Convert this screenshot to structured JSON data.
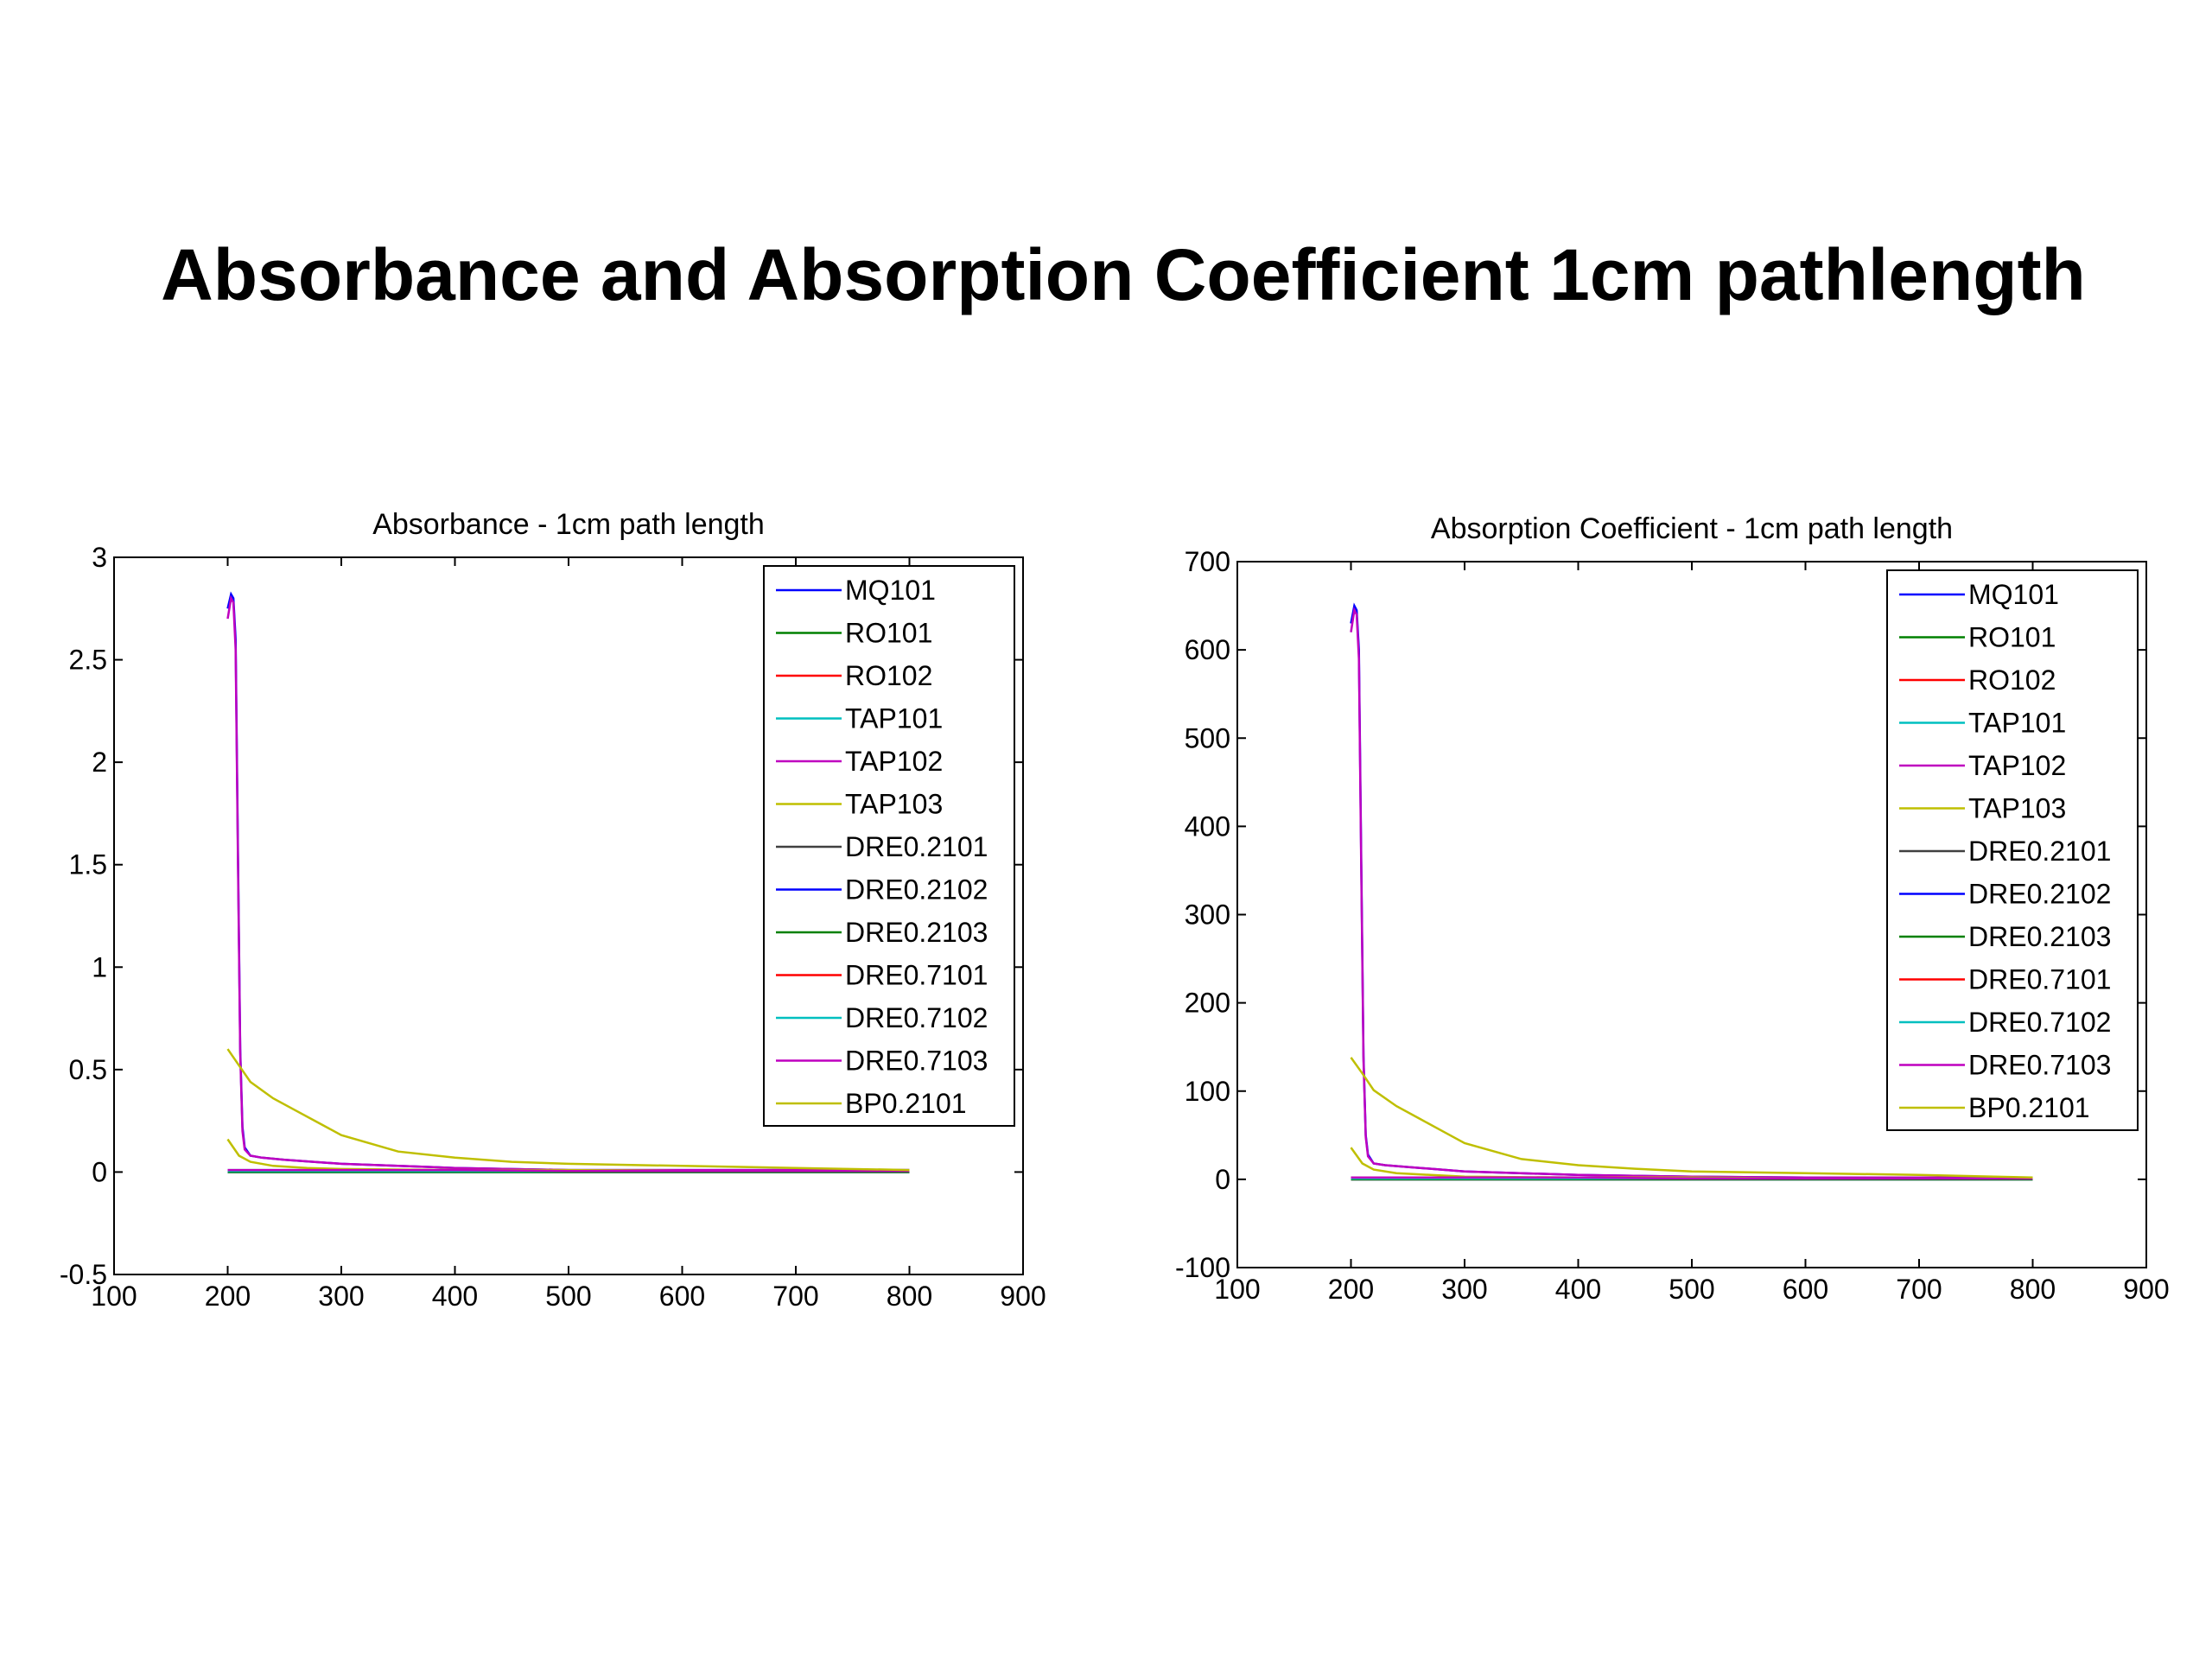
{
  "page": {
    "title": "Absorbance and Absorption Coefficient 1cm pathlength"
  },
  "legend_colors": {
    "MQ101": "#0000ff",
    "RO101": "#008000",
    "RO102": "#ff0000",
    "TAP101": "#00bfbf",
    "TAP102": "#bf00bf",
    "TAP103": "#bfbf00",
    "DRE0.2101": "#404040",
    "DRE0.2102": "#0000ff",
    "DRE0.2103": "#008000",
    "DRE0.7101": "#ff0000",
    "DRE0.7102": "#00bfbf",
    "DRE0.7103": "#bf00bf",
    "BP0.2101": "#bfbf00"
  },
  "chart_data": [
    {
      "type": "line",
      "title": "Absorbance - 1cm path length",
      "xlabel": "",
      "ylabel": "",
      "xlim": [
        100,
        900
      ],
      "ylim": [
        -0.5,
        3
      ],
      "xticks": [
        "100",
        "200",
        "300",
        "400",
        "500",
        "600",
        "700",
        "800",
        "900"
      ],
      "yticks": [
        "-0.5",
        "0",
        "0.5",
        "1",
        "1.5",
        "2",
        "2.5",
        "3"
      ],
      "legend_position": "top-right",
      "grid": false,
      "series": [
        {
          "name": "MQ101",
          "color": "#0000ff",
          "x": [
            200,
            203,
            205,
            207,
            209,
            211,
            213,
            215,
            220,
            230,
            250,
            300,
            400,
            500,
            600,
            700,
            800
          ],
          "y": [
            2.75,
            2.82,
            2.8,
            2.6,
            1.6,
            0.6,
            0.22,
            0.12,
            0.08,
            0.07,
            0.06,
            0.04,
            0.02,
            0.01,
            0.01,
            0.01,
            0.01
          ]
        },
        {
          "name": "RO101",
          "color": "#008000",
          "x": [
            200,
            300,
            400,
            500,
            600,
            700,
            800
          ],
          "y": [
            0.0,
            0.0,
            0.0,
            0.0,
            0.0,
            0.0,
            0.0
          ]
        },
        {
          "name": "RO102",
          "color": "#ff0000",
          "x": [
            200,
            300,
            400,
            500,
            600,
            700,
            800
          ],
          "y": [
            0.005,
            0.005,
            0.005,
            0.005,
            0.005,
            0.005,
            0.005
          ]
        },
        {
          "name": "TAP101",
          "color": "#00bfbf",
          "x": [
            200,
            300,
            400,
            500,
            600,
            700,
            800
          ],
          "y": [
            0.01,
            0.01,
            0.01,
            0.005,
            0.005,
            0.005,
            0.005
          ]
        },
        {
          "name": "TAP102",
          "color": "#bf00bf",
          "x": [
            200,
            203,
            205,
            207,
            209,
            211,
            213,
            215,
            220,
            230,
            250,
            300,
            400,
            500,
            600,
            700,
            800
          ],
          "y": [
            2.7,
            2.8,
            2.78,
            2.55,
            1.55,
            0.58,
            0.2,
            0.11,
            0.08,
            0.07,
            0.06,
            0.04,
            0.02,
            0.01,
            0.01,
            0.01,
            0.01
          ]
        },
        {
          "name": "TAP103",
          "color": "#bfbf00",
          "x": [
            200,
            210,
            220,
            240,
            270,
            300,
            400,
            500,
            600,
            700,
            800
          ],
          "y": [
            0.16,
            0.08,
            0.05,
            0.03,
            0.02,
            0.015,
            0.01,
            0.01,
            0.005,
            0.005,
            0.005
          ]
        },
        {
          "name": "DRE0.2101",
          "color": "#404040",
          "x": [
            200,
            300,
            400,
            500,
            600,
            700,
            800
          ],
          "y": [
            0.0,
            0.0,
            0.0,
            0.0,
            0.0,
            0.0,
            0.0
          ]
        },
        {
          "name": "DRE0.2102",
          "color": "#0000ff",
          "x": [
            200,
            300,
            400,
            500,
            600,
            700,
            800
          ],
          "y": [
            0.0,
            0.0,
            0.0,
            0.0,
            0.0,
            0.0,
            0.0
          ]
        },
        {
          "name": "DRE0.2103",
          "color": "#008000",
          "x": [
            200,
            300,
            400,
            500,
            600,
            700,
            800
          ],
          "y": [
            0.0,
            0.0,
            0.0,
            0.0,
            0.0,
            0.0,
            0.0
          ]
        },
        {
          "name": "DRE0.7101",
          "color": "#ff0000",
          "x": [
            200,
            300,
            400,
            500,
            600,
            700,
            800
          ],
          "y": [
            0.005,
            0.005,
            0.005,
            0.005,
            0.005,
            0.005,
            0.005
          ]
        },
        {
          "name": "DRE0.7102",
          "color": "#00bfbf",
          "x": [
            200,
            300,
            400,
            500,
            600,
            700,
            800
          ],
          "y": [
            0.005,
            0.005,
            0.005,
            0.005,
            0.005,
            0.005,
            0.005
          ]
        },
        {
          "name": "DRE0.7103",
          "color": "#bf00bf",
          "x": [
            200,
            300,
            400,
            500,
            600,
            700,
            800
          ],
          "y": [
            0.01,
            0.01,
            0.01,
            0.005,
            0.005,
            0.005,
            0.005
          ]
        },
        {
          "name": "BP0.2101",
          "color": "#bfbf00",
          "x": [
            200,
            210,
            220,
            240,
            260,
            280,
            300,
            350,
            400,
            450,
            500,
            600,
            700,
            800
          ],
          "y": [
            0.6,
            0.52,
            0.44,
            0.36,
            0.3,
            0.24,
            0.18,
            0.1,
            0.07,
            0.05,
            0.04,
            0.03,
            0.02,
            0.01
          ]
        }
      ]
    },
    {
      "type": "line",
      "title": "Absorption Coefficient - 1cm path length",
      "xlabel": "",
      "ylabel": "",
      "xlim": [
        100,
        900
      ],
      "ylim": [
        -100,
        700
      ],
      "xticks": [
        "100",
        "200",
        "300",
        "400",
        "500",
        "600",
        "700",
        "800",
        "900"
      ],
      "yticks": [
        "-100",
        "0",
        "100",
        "200",
        "300",
        "400",
        "500",
        "600",
        "700"
      ],
      "legend_position": "top-right",
      "grid": false,
      "series": [
        {
          "name": "MQ101",
          "color": "#0000ff",
          "x": [
            200,
            203,
            205,
            207,
            209,
            211,
            213,
            215,
            220,
            230,
            250,
            300,
            400,
            500,
            600,
            700,
            800
          ],
          "y": [
            630,
            650,
            645,
            600,
            370,
            140,
            50,
            28,
            18,
            16,
            14,
            9,
            5,
            3,
            2,
            2,
            2
          ]
        },
        {
          "name": "RO101",
          "color": "#008000",
          "x": [
            200,
            300,
            400,
            500,
            600,
            700,
            800
          ],
          "y": [
            0,
            0,
            0,
            0,
            0,
            0,
            0
          ]
        },
        {
          "name": "RO102",
          "color": "#ff0000",
          "x": [
            200,
            300,
            400,
            500,
            600,
            700,
            800
          ],
          "y": [
            1,
            1,
            1,
            1,
            1,
            1,
            1
          ]
        },
        {
          "name": "TAP101",
          "color": "#00bfbf",
          "x": [
            200,
            300,
            400,
            500,
            600,
            700,
            800
          ],
          "y": [
            2,
            2,
            2,
            1,
            1,
            1,
            1
          ]
        },
        {
          "name": "TAP102",
          "color": "#bf00bf",
          "x": [
            200,
            203,
            205,
            207,
            209,
            211,
            213,
            215,
            220,
            230,
            250,
            300,
            400,
            500,
            600,
            700,
            800
          ],
          "y": [
            620,
            645,
            640,
            590,
            360,
            135,
            48,
            26,
            18,
            16,
            14,
            9,
            5,
            3,
            2,
            2,
            2
          ]
        },
        {
          "name": "TAP103",
          "color": "#bfbf00",
          "x": [
            200,
            210,
            220,
            240,
            270,
            300,
            400,
            500,
            600,
            700,
            800
          ],
          "y": [
            36,
            18,
            11,
            7,
            5,
            3,
            2,
            2,
            1,
            1,
            1
          ]
        },
        {
          "name": "DRE0.2101",
          "color": "#404040",
          "x": [
            200,
            300,
            400,
            500,
            600,
            700,
            800
          ],
          "y": [
            0,
            0,
            0,
            0,
            0,
            0,
            0
          ]
        },
        {
          "name": "DRE0.2102",
          "color": "#0000ff",
          "x": [
            200,
            300,
            400,
            500,
            600,
            700,
            800
          ],
          "y": [
            0,
            0,
            0,
            0,
            0,
            0,
            0
          ]
        },
        {
          "name": "DRE0.2103",
          "color": "#008000",
          "x": [
            200,
            300,
            400,
            500,
            600,
            700,
            800
          ],
          "y": [
            0,
            0,
            0,
            0,
            0,
            0,
            0
          ]
        },
        {
          "name": "DRE0.7101",
          "color": "#ff0000",
          "x": [
            200,
            300,
            400,
            500,
            600,
            700,
            800
          ],
          "y": [
            1,
            1,
            1,
            1,
            1,
            1,
            1
          ]
        },
        {
          "name": "DRE0.7102",
          "color": "#00bfbf",
          "x": [
            200,
            300,
            400,
            500,
            600,
            700,
            800
          ],
          "y": [
            1,
            1,
            1,
            1,
            1,
            1,
            1
          ]
        },
        {
          "name": "DRE0.7103",
          "color": "#bf00bf",
          "x": [
            200,
            300,
            400,
            500,
            600,
            700,
            800
          ],
          "y": [
            2,
            2,
            2,
            1,
            1,
            1,
            1
          ]
        },
        {
          "name": "BP0.2101",
          "color": "#bfbf00",
          "x": [
            200,
            210,
            220,
            240,
            260,
            280,
            300,
            350,
            400,
            450,
            500,
            600,
            700,
            800
          ],
          "y": [
            138,
            120,
            101,
            83,
            69,
            55,
            41,
            23,
            16,
            12,
            9,
            7,
            5,
            2
          ]
        }
      ]
    }
  ]
}
